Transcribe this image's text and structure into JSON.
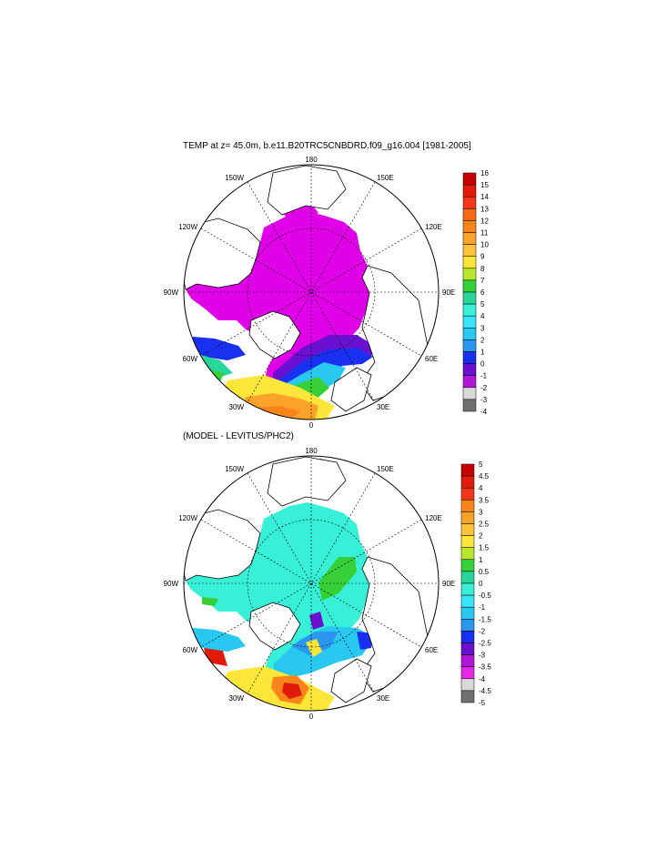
{
  "panels": [
    {
      "title": "TEMP at z=  45.0m, b.e11.B20TRC5CNBDRD.f09_g16.004 [1981-2005]",
      "colorbar": {
        "labels": [
          "16",
          "15",
          "14",
          "13",
          "12",
          "11",
          "10",
          "9",
          "8",
          "7",
          "6",
          "5",
          "4",
          "3",
          "2",
          "1",
          "0",
          "-1",
          "-2",
          "-3",
          "-4"
        ],
        "colors": [
          "#c80000",
          "#e21a0a",
          "#f5351a",
          "#f76a12",
          "#f9851a",
          "#faa229",
          "#fbc23a",
          "#fde63a",
          "#b8e62e",
          "#38d038",
          "#28d69a",
          "#38f0d8",
          "#38e4f8",
          "#28c8f0",
          "#2a96f0",
          "#1a30f0",
          "#6a10d0",
          "#b018d8",
          "#d8d8d8",
          "#707070"
        ]
      },
      "axis_labels": {
        "top": "180",
        "bottom": "0",
        "left": "90W",
        "right": "90E",
        "ul1": "150W",
        "ul2": "120W",
        "ur1": "150E",
        "ur2": "120E",
        "ll1": "60W",
        "ll2": "30W",
        "lr1": "60E",
        "lr2": "30E"
      }
    },
    {
      "title": "(MODEL - LEVITUS/PHC2)",
      "colorbar": {
        "labels": [
          "5",
          "4.5",
          "4",
          "3.5",
          "3",
          "2.5",
          "2",
          "1.5",
          "1",
          "0.5",
          "0",
          "-0.5",
          "-1",
          "-1.5",
          "-2",
          "-2.5",
          "-3",
          "-3.5",
          "-4",
          "-4.5",
          "-5"
        ],
        "colors": [
          "#c80000",
          "#e21a0a",
          "#f5351a",
          "#f9851a",
          "#faa229",
          "#fbc23a",
          "#fde63a",
          "#b8e62e",
          "#38d038",
          "#28d69a",
          "#38f0d8",
          "#38e4f8",
          "#28c8f0",
          "#2a96f0",
          "#1a30f0",
          "#6a10d0",
          "#b018d8",
          "#e828e8",
          "#d8d8d8",
          "#707070"
        ]
      },
      "axis_labels": {
        "top": "180",
        "bottom": "0",
        "left": "90W",
        "right": "90E",
        "ul1": "150W",
        "ul2": "120W",
        "ur1": "150E",
        "ur2": "120E",
        "ll1": "60W",
        "ll2": "30W",
        "lr1": "60E",
        "lr2": "30E"
      }
    }
  ],
  "fields": {
    "panel1_ocean_color": "#e000e8",
    "panel2_ocean_color": "#38f0d8"
  }
}
